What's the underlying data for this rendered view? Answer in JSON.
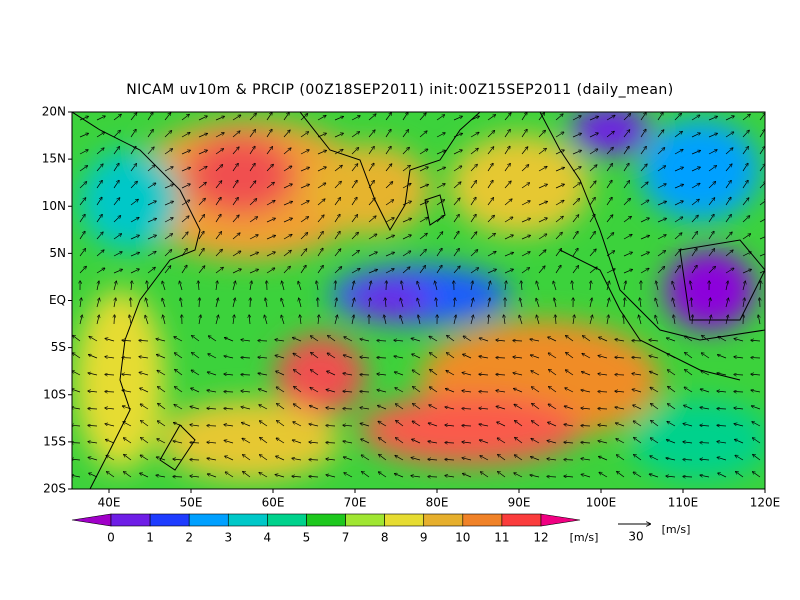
{
  "header": {
    "title": "NICAM uv10m & PRCIP (00Z18SEP2011) init:00Z15SEP2011 (daily_mean)"
  },
  "map": {
    "lat_labels": [
      "20N",
      "15N",
      "10N",
      "5N",
      "EQ",
      "5S",
      "10S",
      "15S",
      "20S"
    ],
    "lon_labels": [
      "40E",
      "50E",
      "60E",
      "70E",
      "80E",
      "90E",
      "100E",
      "110E",
      "120E"
    ]
  },
  "colorbar": {
    "labels": [
      "0",
      "1",
      "2",
      "3",
      "4",
      "5",
      "7",
      "8",
      "9",
      "10",
      "11",
      "12"
    ],
    "unit": "[m/s]"
  },
  "reference_vector": {
    "label": "30",
    "unit": "[m/s]"
  }
}
